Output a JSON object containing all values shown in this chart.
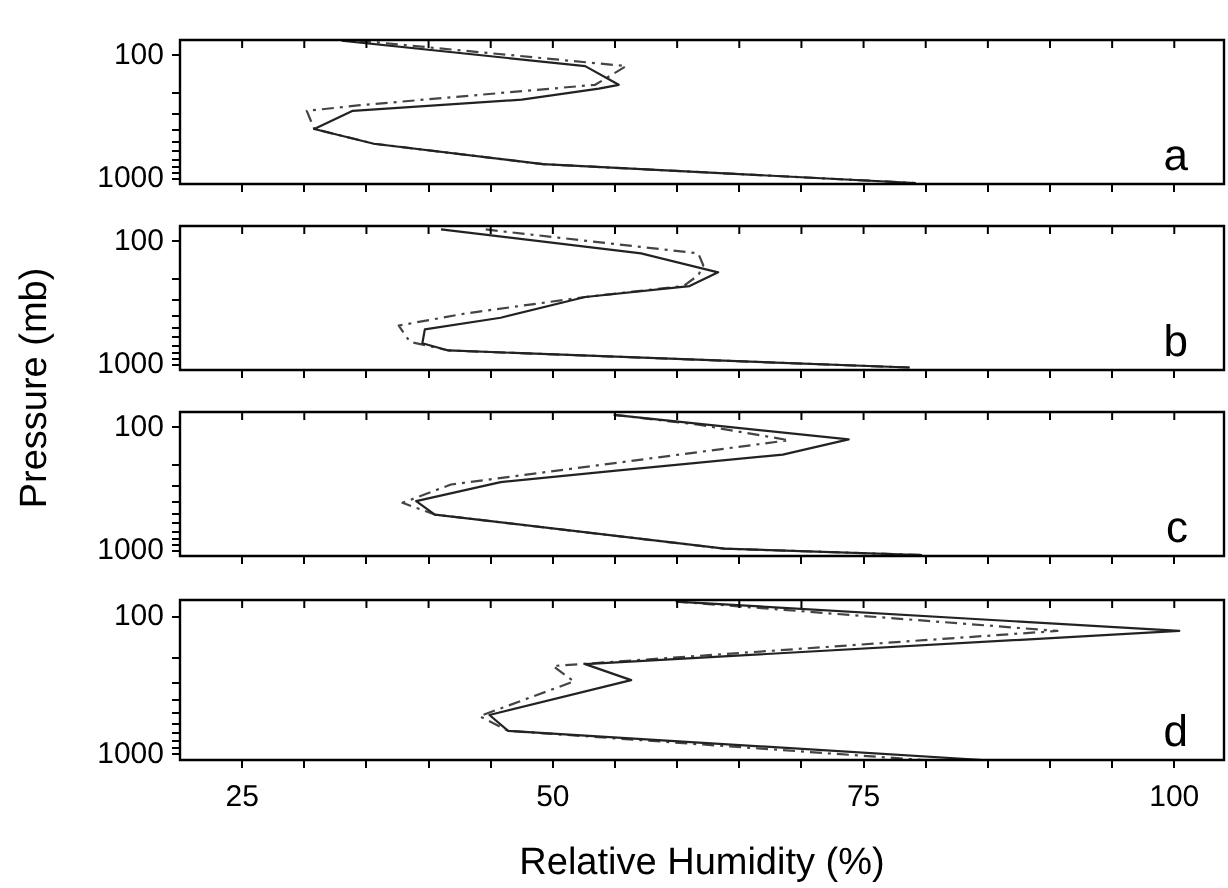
{
  "chart_data": [
    {
      "type": "line",
      "ylabel": "Pressure (mb)",
      "annotations": [
        "a"
      ],
      "xlim": [
        20,
        104
      ],
      "ylim": [
        1100,
        75
      ],
      "log": "y",
      "grid": false,
      "legend": false,
      "tick_labels": "y",
      "marker": "none",
      "xticks": [
        {
          "value": 25,
          "label": null
        },
        {
          "value": 30,
          "label": null
        },
        {
          "value": 35,
          "label": null
        },
        {
          "value": 40,
          "label": null
        },
        {
          "value": 45,
          "label": null
        },
        {
          "value": 50,
          "label": null
        },
        {
          "value": 55,
          "label": null
        },
        {
          "value": 60,
          "label": null
        },
        {
          "value": 65,
          "label": null
        },
        {
          "value": 70,
          "label": null
        },
        {
          "value": 75,
          "label": null
        },
        {
          "value": 80,
          "label": null
        },
        {
          "value": 85,
          "label": null
        },
        {
          "value": 90,
          "label": null
        },
        {
          "value": 95,
          "label": null
        },
        {
          "value": 100,
          "label": null
        }
      ],
      "yticks": [
        {
          "value": 100,
          "label": "100"
        },
        {
          "value": 200,
          "label": null
        },
        {
          "value": 300,
          "label": null
        },
        {
          "value": 400,
          "label": null
        },
        {
          "value": 500,
          "label": null
        },
        {
          "value": 600,
          "label": null
        },
        {
          "value": 700,
          "label": null
        },
        {
          "value": 800,
          "label": null
        },
        {
          "value": 900,
          "label": null
        },
        {
          "value": 1000,
          "label": "1000"
        }
      ],
      "series": [
        {
          "color": "#222222",
          "line_style": "solid",
          "x": [
            33,
            52.6,
            55.3,
            53.7,
            47.5,
            33.9,
            30.8,
            35.6,
            49.2,
            79.2
          ],
          "values": [
            76,
            122,
            173,
            186,
            228,
            281,
            394,
            519,
            760,
            1080
          ]
        },
        {
          "color": "#444444",
          "line_style": "dashed",
          "x": [
            34.4,
            55.9,
            53.4,
            34.5,
            30.2,
            30.8,
            35.6,
            49.2,
            79.2
          ],
          "values": [
            76,
            122,
            173,
            253,
            281,
            394,
            519,
            760,
            1080
          ]
        }
      ]
    },
    {
      "type": "line",
      "annotations": [
        "b"
      ],
      "xlim": [
        20,
        104
      ],
      "ylim": [
        1100,
        75
      ],
      "log": "y",
      "grid": false,
      "legend": false,
      "tick_labels": "y",
      "marker": "none",
      "xticks": [
        {
          "value": 25,
          "label": null
        },
        {
          "value": 30,
          "label": null
        },
        {
          "value": 35,
          "label": null
        },
        {
          "value": 40,
          "label": null
        },
        {
          "value": 45,
          "label": null
        },
        {
          "value": 50,
          "label": null
        },
        {
          "value": 55,
          "label": null
        },
        {
          "value": 60,
          "label": null
        },
        {
          "value": 65,
          "label": null
        },
        {
          "value": 70,
          "label": null
        },
        {
          "value": 75,
          "label": null
        },
        {
          "value": 80,
          "label": null
        },
        {
          "value": 85,
          "label": null
        },
        {
          "value": 90,
          "label": null
        },
        {
          "value": 95,
          "label": null
        },
        {
          "value": 100,
          "label": null
        }
      ],
      "yticks": [
        {
          "value": 100,
          "label": "100"
        },
        {
          "value": 200,
          "label": null
        },
        {
          "value": 300,
          "label": null
        },
        {
          "value": 400,
          "label": null
        },
        {
          "value": 500,
          "label": null
        },
        {
          "value": 600,
          "label": null
        },
        {
          "value": 700,
          "label": null
        },
        {
          "value": 800,
          "label": null
        },
        {
          "value": 900,
          "label": null
        },
        {
          "value": 1000,
          "label": "1000"
        }
      ],
      "series": [
        {
          "color": "#222222",
          "line_style": "solid",
          "x": [
            41.0,
            57.1,
            63.3,
            61.0,
            52.6,
            45.8,
            39.7,
            39.5,
            41.6,
            78.7
          ],
          "values": [
            80,
            125,
            178,
            230,
            282,
            415,
            516,
            668,
            764,
            1050
          ]
        },
        {
          "color": "#444444",
          "line_style": "dashed",
          "x": [
            44.6,
            61.7,
            62.1,
            61.7,
            60.5,
            52.6,
            43.0,
            37.6,
            38.5,
            41.6,
            78.7
          ],
          "values": [
            80,
            125,
            156,
            188,
            230,
            282,
            383,
            480,
            650,
            764,
            1050
          ]
        }
      ]
    },
    {
      "type": "line",
      "annotations": [
        "c"
      ],
      "xlim": [
        20,
        104
      ],
      "ylim": [
        1100,
        75
      ],
      "log": "y",
      "grid": false,
      "legend": false,
      "tick_labels": "y",
      "marker": "none",
      "xticks": [
        {
          "value": 25,
          "label": null
        },
        {
          "value": 30,
          "label": null
        },
        {
          "value": 35,
          "label": null
        },
        {
          "value": 40,
          "label": null
        },
        {
          "value": 45,
          "label": null
        },
        {
          "value": 50,
          "label": null
        },
        {
          "value": 55,
          "label": null
        },
        {
          "value": 60,
          "label": null
        },
        {
          "value": 65,
          "label": null
        },
        {
          "value": 70,
          "label": null
        },
        {
          "value": 75,
          "label": null
        },
        {
          "value": 80,
          "label": null
        },
        {
          "value": 85,
          "label": null
        },
        {
          "value": 90,
          "label": null
        },
        {
          "value": 95,
          "label": null
        },
        {
          "value": 100,
          "label": null
        }
      ],
      "yticks": [
        {
          "value": 100,
          "label": "100"
        },
        {
          "value": 200,
          "label": null
        },
        {
          "value": 300,
          "label": null
        },
        {
          "value": 400,
          "label": null
        },
        {
          "value": 500,
          "label": null
        },
        {
          "value": 600,
          "label": null
        },
        {
          "value": 700,
          "label": null
        },
        {
          "value": 800,
          "label": null
        },
        {
          "value": 900,
          "label": null
        },
        {
          "value": 1000,
          "label": "1000"
        }
      ],
      "series": [
        {
          "color": "#222222",
          "line_style": "solid",
          "x": [
            54.9,
            73.8,
            68.5,
            54.9,
            45.8,
            39.0,
            40.5,
            63.8,
            79.7
          ],
          "values": [
            79,
            125,
            166,
            225,
            277,
            395,
            508,
            960,
            1080
          ]
        },
        {
          "color": "#444444",
          "line_style": "dashed",
          "x": [
            54.9,
            61.7,
            69.0,
            41.8,
            37.9,
            40.5,
            63.8,
            79.7
          ],
          "values": [
            79,
            95,
            127,
            290,
            408,
            508,
            960,
            1080
          ]
        }
      ]
    },
    {
      "type": "line",
      "xlabel": "Relative Humidity (%)",
      "annotations": [
        "d"
      ],
      "xlim": [
        20,
        104
      ],
      "ylim": [
        1100,
        75
      ],
      "log": "y",
      "grid": false,
      "legend": false,
      "marker": "none",
      "xticks": [
        {
          "value": 25,
          "label": "25"
        },
        {
          "value": 30,
          "label": null
        },
        {
          "value": 35,
          "label": null
        },
        {
          "value": 40,
          "label": null
        },
        {
          "value": 45,
          "label": null
        },
        {
          "value": 50,
          "label": "50"
        },
        {
          "value": 55,
          "label": null
        },
        {
          "value": 60,
          "label": null
        },
        {
          "value": 65,
          "label": null
        },
        {
          "value": 70,
          "label": null
        },
        {
          "value": 75,
          "label": "75"
        },
        {
          "value": 80,
          "label": null
        },
        {
          "value": 85,
          "label": null
        },
        {
          "value": 90,
          "label": null
        },
        {
          "value": 95,
          "label": null
        },
        {
          "value": 100,
          "label": "100"
        }
      ],
      "yticks": [
        {
          "value": 100,
          "label": "100"
        },
        {
          "value": 200,
          "label": null
        },
        {
          "value": 300,
          "label": null
        },
        {
          "value": 400,
          "label": null
        },
        {
          "value": 500,
          "label": null
        },
        {
          "value": 600,
          "label": null
        },
        {
          "value": 700,
          "label": null
        },
        {
          "value": 800,
          "label": null
        },
        {
          "value": 900,
          "label": null
        },
        {
          "value": 1000,
          "label": "1000"
        }
      ],
      "series": [
        {
          "color": "#222222",
          "line_style": "solid",
          "x": [
            59.9,
            100.4,
            52.6,
            56.3,
            44.9,
            46.4,
            84.6
          ],
          "values": [
            77,
            126,
            220,
            288,
            517,
            674,
            1100
          ]
        },
        {
          "color": "#444444",
          "line_style": "dashed",
          "x": [
            59.9,
            90.6,
            50.0,
            51.7,
            44.1,
            46.4,
            79.8
          ],
          "values": [
            77,
            126,
            227,
            294,
            527,
            674,
            1100
          ]
        }
      ]
    }
  ]
}
